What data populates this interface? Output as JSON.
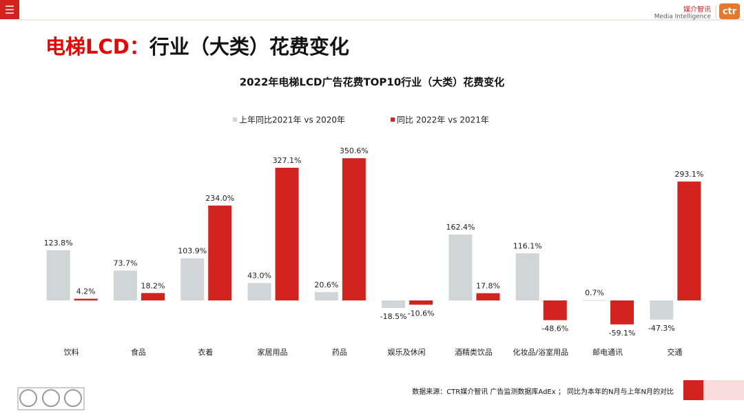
{
  "header": {
    "logo_cn": "媒介智讯",
    "logo_en": "Media Intelligence",
    "logo_mark": "ctr"
  },
  "slide_title": {
    "accent": "电梯LCD：",
    "rest": "行业（大类）花费变化"
  },
  "footnote": "数据来源：CTR媒介智讯 广告监测数据库AdEx ； 同比为本年的N月与上年N月的对比",
  "chart_data": {
    "type": "bar",
    "title": "2022年电梯LCD广告花费TOP10行业（大类）花费变化",
    "categories": [
      "饮料",
      "食品",
      "衣着",
      "家居用品",
      "药品",
      "娱乐及休闲",
      "酒精类饮品",
      "化妆品/浴室用品",
      "邮电通讯",
      "交通"
    ],
    "series": [
      {
        "name": "上年同比2021年 vs 2020年",
        "color": "#d0d5d8",
        "values": [
          123.8,
          73.7,
          103.9,
          43.0,
          20.6,
          -18.5,
          162.4,
          116.1,
          0.7,
          -47.3
        ],
        "value_labels": [
          "123.8%",
          "73.7%",
          "103.9%",
          "43.0%",
          "20.6%",
          "-18.5%",
          "162.4%",
          "116.1%",
          "0.7%",
          "-47.3%"
        ]
      },
      {
        "name": "同比 2022年 vs 2021年",
        "color": "#d2231e",
        "values": [
          4.2,
          18.2,
          234.0,
          327.1,
          350.6,
          -10.6,
          17.8,
          -48.6,
          -59.1,
          293.1
        ],
        "value_labels": [
          "4.2%",
          "18.2%",
          "234.0%",
          "327.1%",
          "350.6%",
          "-10.6%",
          "17.8%",
          "-48.6%",
          "-59.1%",
          "293.1%"
        ]
      }
    ],
    "ylim": [
      -100,
      400
    ],
    "legend": "top"
  }
}
